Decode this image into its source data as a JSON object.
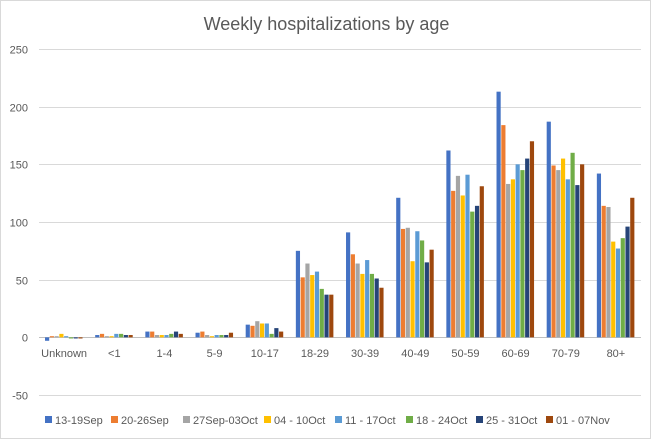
{
  "chart_data": {
    "type": "bar",
    "title": "Weekly hospitalizations by age",
    "xlabel": "",
    "ylabel": "",
    "ylim": [
      -50,
      250
    ],
    "yticks": [
      -50,
      0,
      50,
      100,
      150,
      200,
      250
    ],
    "grid": true,
    "legend_position": "bottom",
    "categories": [
      "Unknown",
      "<1",
      "1-4",
      "5-9",
      "10-17",
      "18-29",
      "30-39",
      "40-49",
      "50-59",
      "60-69",
      "70-79",
      "80+"
    ],
    "series": [
      {
        "name": "13-19Sep",
        "color": "#4472C4",
        "values": [
          -3,
          2,
          5,
          4,
          11,
          75,
          91,
          121,
          162,
          213,
          187,
          142
        ]
      },
      {
        "name": "20-26Sep",
        "color": "#ED7D31",
        "values": [
          1,
          3,
          5,
          5,
          10,
          52,
          72,
          94,
          127,
          184,
          149,
          114
        ]
      },
      {
        "name": "27Sep-03Oct",
        "color": "#A5A5A5",
        "values": [
          1,
          1,
          2,
          2,
          14,
          64,
          64,
          95,
          140,
          133,
          145,
          113
        ]
      },
      {
        "name": "04 - 10Oct",
        "color": "#FFC000",
        "values": [
          3,
          1,
          2,
          1,
          12,
          54,
          55,
          66,
          123,
          137,
          155,
          83
        ]
      },
      {
        "name": "11 - 17Oct",
        "color": "#5B9BD5",
        "values": [
          1,
          3,
          2,
          2,
          12,
          57,
          67,
          92,
          141,
          150,
          137,
          77
        ]
      },
      {
        "name": "18 - 24Oct",
        "color": "#70AD47",
        "values": [
          -1,
          3,
          3,
          2,
          3,
          42,
          55,
          84,
          109,
          145,
          160,
          86
        ]
      },
      {
        "name": "25 - 31Oct",
        "color": "#264478",
        "values": [
          -1,
          2,
          5,
          2,
          8,
          37,
          51,
          65,
          114,
          155,
          132,
          96
        ]
      },
      {
        "name": "01 - 07Nov",
        "color": "#9E480E",
        "values": [
          -1,
          2,
          3,
          4,
          5,
          37,
          43,
          76,
          131,
          170,
          150,
          121
        ]
      }
    ]
  }
}
